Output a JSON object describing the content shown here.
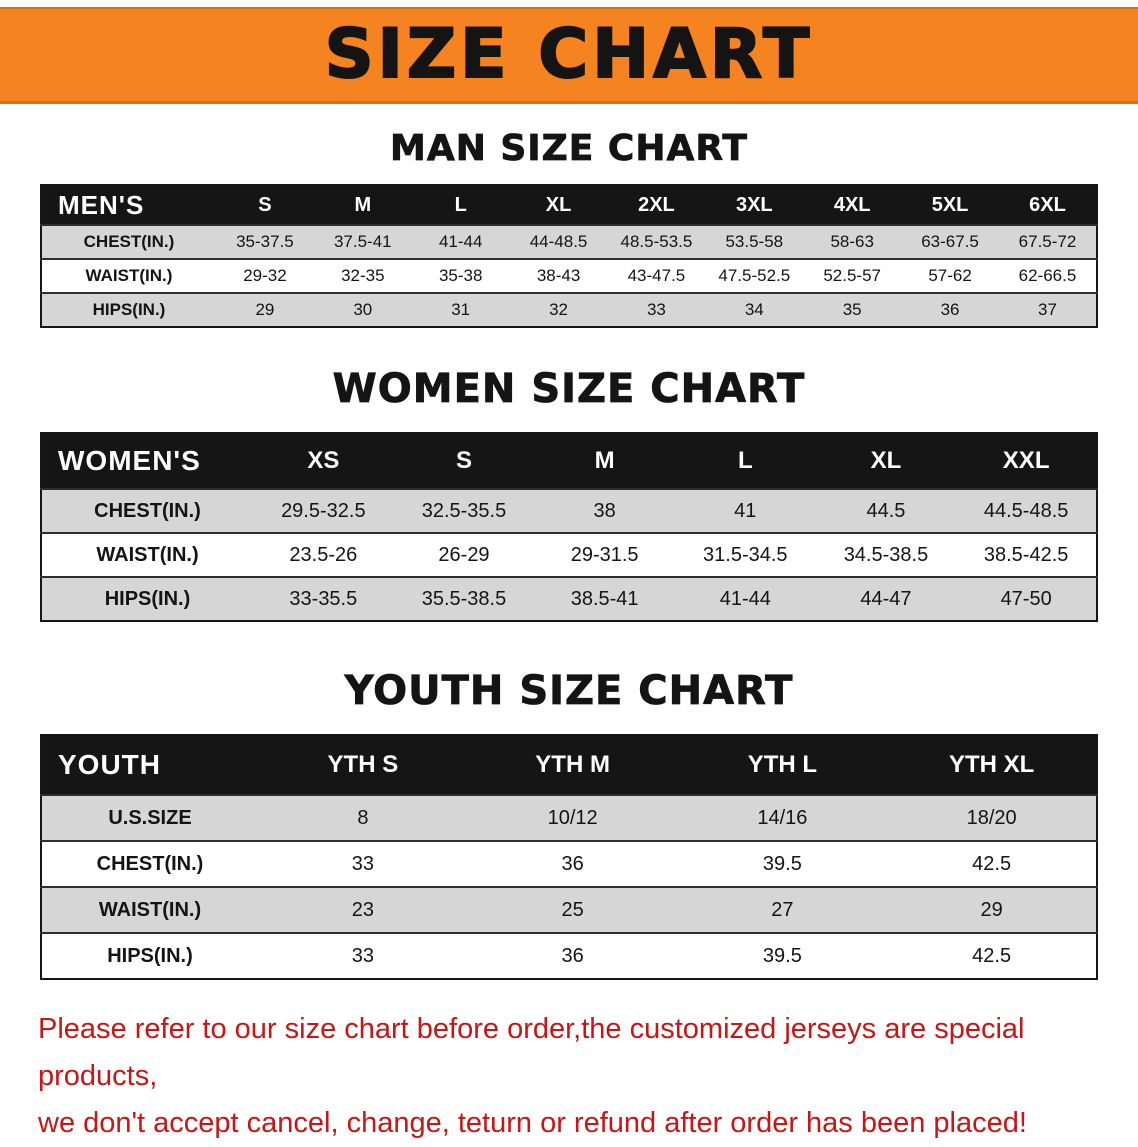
{
  "banner": {
    "title": "SIZE CHART"
  },
  "colors": {
    "banner_bg": "#f5831f",
    "table_header_bg": "#151515",
    "row_shade": "#d6d6d6",
    "disclaimer_red": "#c61616"
  },
  "sections": [
    {
      "id": "men",
      "heading": "MAN SIZE CHART",
      "table": {
        "title": "MEN'S",
        "columns": [
          "S",
          "M",
          "L",
          "XL",
          "2XL",
          "3XL",
          "4XL",
          "5XL",
          "6XL"
        ],
        "rows": [
          {
            "label": "CHEST(IN.)",
            "values": [
              "35-37.5",
              "37.5-41",
              "41-44",
              "44-48.5",
              "48.5-53.5",
              "53.5-58",
              "58-63",
              "63-67.5",
              "67.5-72"
            ]
          },
          {
            "label": "WAIST(IN.)",
            "values": [
              "29-32",
              "32-35",
              "35-38",
              "38-43",
              "43-47.5",
              "47.5-52.5",
              "52.5-57",
              "57-62",
              "62-66.5"
            ]
          },
          {
            "label": "HIPS(IN.)",
            "values": [
              "29",
              "30",
              "31",
              "32",
              "33",
              "34",
              "35",
              "36",
              "37"
            ]
          }
        ]
      }
    },
    {
      "id": "women",
      "heading": "WOMEN SIZE CHART",
      "table": {
        "title": "WOMEN'S",
        "columns": [
          "XS",
          "S",
          "M",
          "L",
          "XL",
          "XXL"
        ],
        "rows": [
          {
            "label": "CHEST(IN.)",
            "values": [
              "29.5-32.5",
              "32.5-35.5",
              "38",
              "41",
              "44.5",
              "44.5-48.5"
            ]
          },
          {
            "label": "WAIST(IN.)",
            "values": [
              "23.5-26",
              "26-29",
              "29-31.5",
              "31.5-34.5",
              "34.5-38.5",
              "38.5-42.5"
            ]
          },
          {
            "label": "HIPS(IN.)",
            "values": [
              "33-35.5",
              "35.5-38.5",
              "38.5-41",
              "41-44",
              "44-47",
              "47-50"
            ]
          }
        ]
      }
    },
    {
      "id": "youth",
      "heading": "YOUTH SIZE CHART",
      "table": {
        "title": "YOUTH",
        "columns": [
          "YTH S",
          "YTH M",
          "YTH L",
          "YTH XL"
        ],
        "rows": [
          {
            "label": "U.S.SIZE",
            "values": [
              "8",
              "10/12",
              "14/16",
              "18/20"
            ]
          },
          {
            "label": "CHEST(IN.)",
            "values": [
              "33",
              "36",
              "39.5",
              "42.5"
            ]
          },
          {
            "label": "WAIST(IN.)",
            "values": [
              "23",
              "25",
              "27",
              "29"
            ]
          },
          {
            "label": "HIPS(IN.)",
            "values": [
              "33",
              "36",
              "39.5",
              "42.5"
            ]
          }
        ]
      }
    }
  ],
  "disclaimer": {
    "line1": "Please refer to our size chart before order,the customized jerseys are special products,",
    "line2": "we don't accept cancel, change, teturn or refund after order has been placed!"
  }
}
